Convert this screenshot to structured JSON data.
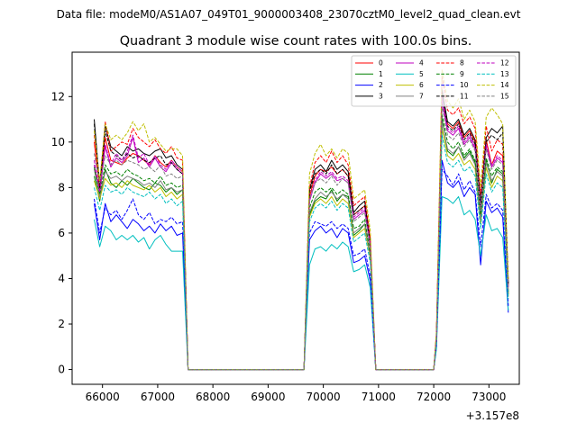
{
  "chart_data": {
    "type": "line",
    "suptitle": "Data file: modeM0/AS1A07_049T01_9000003408_23070cztM0_level2_quad_clean.evt",
    "title": "Quadrant 3 module wise count rates with 100.0s bins.",
    "xlabel": "",
    "ylabel": "",
    "x_offset_label": "+3.157e8",
    "xlim": [
      65450,
      73550
    ],
    "ylim": [
      -0.65,
      13.95
    ],
    "xticks": [
      66000,
      67000,
      68000,
      69000,
      70000,
      71000,
      72000,
      73000
    ],
    "yticks": [
      0,
      2,
      4,
      6,
      8,
      10,
      12
    ],
    "grid": false,
    "legend_position": "top-right",
    "x": [
      65850,
      65950,
      66050,
      66150,
      66250,
      66350,
      66450,
      66550,
      66650,
      66750,
      66850,
      66950,
      67050,
      67150,
      67250,
      67350,
      67450,
      67550,
      67650,
      69550,
      69650,
      69750,
      69850,
      69950,
      70050,
      70150,
      70250,
      70350,
      70450,
      70550,
      70650,
      70750,
      70850,
      70950,
      72000,
      72050,
      72150,
      72250,
      72350,
      72450,
      72550,
      72650,
      72750,
      72850,
      72950,
      73050,
      73150,
      73250,
      73350
    ],
    "series": [
      {
        "name": "0",
        "color": "#ff0000",
        "dash": "solid",
        "values": [
          10.0,
          7.9,
          10.2,
          9.2,
          9.1,
          9.0,
          9.3,
          9.5,
          9.4,
          9.2,
          9.0,
          9.4,
          9.1,
          8.9,
          9.2,
          8.9,
          8.7,
          0,
          0,
          0,
          0,
          7.6,
          8.5,
          8.8,
          8.7,
          8.9,
          8.6,
          8.8,
          8.5,
          6.8,
          7.0,
          7.2,
          5.5,
          0,
          0,
          1.5,
          12.2,
          10.8,
          10.6,
          10.9,
          10.2,
          10.5,
          10.0,
          7.2,
          10.1,
          9.0,
          9.6,
          9.4,
          3.7
        ]
      },
      {
        "name": "1",
        "color": "#008000",
        "dash": "solid",
        "values": [
          8.5,
          7.4,
          8.8,
          8.2,
          8.0,
          8.3,
          8.1,
          8.4,
          8.2,
          8.0,
          7.9,
          8.2,
          8.1,
          7.8,
          8.0,
          7.7,
          7.9,
          0,
          0,
          0,
          0,
          6.8,
          7.4,
          7.6,
          7.5,
          7.9,
          7.4,
          7.7,
          7.6,
          5.9,
          6.1,
          6.4,
          5.0,
          0,
          0,
          1.2,
          11.0,
          9.6,
          9.4,
          9.8,
          9.3,
          9.6,
          9.1,
          6.6,
          9.2,
          8.2,
          8.8,
          8.6,
          3.3
        ]
      },
      {
        "name": "2",
        "color": "#0000ff",
        "dash": "solid",
        "values": [
          7.3,
          5.7,
          7.3,
          6.5,
          6.8,
          6.5,
          6.2,
          6.6,
          6.4,
          6.1,
          6.3,
          6.0,
          6.4,
          6.1,
          6.3,
          5.9,
          6.0,
          0,
          0,
          0,
          0,
          5.7,
          6.1,
          6.3,
          6.0,
          6.2,
          5.8,
          6.2,
          6.0,
          4.7,
          4.8,
          5.0,
          3.9,
          0,
          0,
          1.0,
          9.2,
          8.2,
          8.0,
          8.3,
          7.6,
          8.0,
          7.7,
          4.6,
          7.4,
          6.9,
          7.1,
          6.7,
          2.5
        ]
      },
      {
        "name": "3",
        "color": "#000000",
        "dash": "solid",
        "values": [
          11.0,
          8.1,
          10.7,
          9.8,
          9.6,
          9.4,
          9.8,
          9.6,
          9.7,
          9.5,
          9.4,
          9.6,
          9.7,
          9.3,
          9.4,
          9.0,
          8.8,
          0,
          0,
          0,
          0,
          7.9,
          8.8,
          9.0,
          8.7,
          9.2,
          8.8,
          9.0,
          8.7,
          6.9,
          7.2,
          7.4,
          5.6,
          0,
          0,
          1.5,
          12.3,
          10.9,
          10.7,
          11.0,
          10.3,
          10.6,
          10.1,
          7.3,
          10.2,
          10.6,
          10.4,
          10.7,
          3.8
        ]
      },
      {
        "name": "4",
        "color": "#bf00bf",
        "dash": "solid",
        "values": [
          9.0,
          7.7,
          9.8,
          8.9,
          9.3,
          9.1,
          9.4,
          10.2,
          9.1,
          9.3,
          8.9,
          9.3,
          8.9,
          8.7,
          9.1,
          8.8,
          8.6,
          0,
          0,
          0,
          0,
          7.4,
          8.2,
          8.6,
          8.4,
          8.6,
          8.3,
          8.4,
          8.2,
          6.6,
          6.8,
          7.0,
          5.4,
          0,
          0,
          1.4,
          11.8,
          10.5,
          10.3,
          10.6,
          9.9,
          10.2,
          9.7,
          7.0,
          9.8,
          8.9,
          9.3,
          9.1,
          3.6
        ]
      },
      {
        "name": "5",
        "color": "#00bfbf",
        "dash": "solid",
        "values": [
          6.6,
          5.4,
          6.3,
          6.1,
          5.7,
          5.9,
          5.7,
          5.9,
          5.6,
          5.8,
          5.3,
          5.7,
          5.9,
          5.5,
          5.2,
          5.2,
          5.2,
          0,
          0,
          0,
          0,
          4.6,
          5.3,
          5.4,
          5.2,
          5.5,
          5.3,
          5.6,
          5.4,
          4.3,
          4.4,
          4.6,
          3.6,
          0,
          0,
          0.9,
          7.6,
          7.5,
          7.3,
          7.6,
          6.8,
          7.0,
          6.6,
          5.0,
          6.8,
          6.1,
          6.2,
          5.8,
          2.6
        ]
      },
      {
        "name": "6",
        "color": "#bfbf00",
        "dash": "solid",
        "values": [
          8.3,
          7.5,
          8.4,
          8.1,
          8.2,
          8.0,
          8.3,
          8.1,
          8.0,
          7.9,
          8.1,
          7.8,
          8.0,
          7.6,
          7.8,
          7.5,
          7.7,
          0,
          0,
          0,
          0,
          6.7,
          7.3,
          7.5,
          7.3,
          7.6,
          7.2,
          7.5,
          7.3,
          5.8,
          6.0,
          6.2,
          4.9,
          0,
          0,
          1.2,
          10.6,
          9.4,
          9.2,
          9.5,
          9.0,
          9.2,
          8.8,
          6.4,
          8.9,
          8.0,
          8.5,
          8.3,
          3.2
        ]
      },
      {
        "name": "7",
        "color": "#808080",
        "dash": "solid",
        "values": [
          8.8,
          7.6,
          8.7,
          8.4,
          8.5,
          8.3,
          8.5,
          8.4,
          8.3,
          8.1,
          8.2,
          8.0,
          8.3,
          7.9,
          8.0,
          7.8,
          7.9,
          0,
          0,
          0,
          0,
          6.9,
          7.5,
          7.8,
          7.6,
          7.8,
          7.5,
          7.7,
          7.5,
          6.0,
          6.2,
          6.4,
          5.0,
          0,
          0,
          1.3,
          10.9,
          9.7,
          9.5,
          9.8,
          9.2,
          9.5,
          9.0,
          6.6,
          9.1,
          8.3,
          8.7,
          8.5,
          3.3
        ]
      },
      {
        "name": "8",
        "color": "#ff0000",
        "dash": "dashed",
        "values": [
          10.3,
          8.1,
          10.9,
          9.6,
          9.8,
          10.0,
          9.9,
          10.6,
          10.2,
          10.0,
          9.8,
          10.1,
          9.7,
          9.5,
          9.8,
          9.3,
          9.2,
          0,
          0,
          0,
          0,
          8.0,
          9.1,
          9.4,
          9.1,
          9.6,
          9.1,
          9.4,
          9.0,
          7.2,
          7.4,
          7.6,
          5.8,
          0,
          0,
          1.6,
          12.9,
          11.4,
          11.2,
          11.5,
          10.8,
          11.1,
          10.6,
          7.7,
          10.7,
          9.6,
          10.1,
          9.9,
          3.9
        ]
      },
      {
        "name": "9",
        "color": "#008000",
        "dash": "dashed",
        "values": [
          8.9,
          7.7,
          9.0,
          8.6,
          8.7,
          8.5,
          8.8,
          8.6,
          8.5,
          8.3,
          8.4,
          8.2,
          8.5,
          8.1,
          8.2,
          8.0,
          8.1,
          0,
          0,
          0,
          0,
          7.1,
          7.8,
          8.0,
          7.8,
          8.0,
          7.7,
          7.9,
          7.7,
          6.2,
          6.3,
          6.6,
          5.1,
          0,
          0,
          1.3,
          11.2,
          10.0,
          9.7,
          10.0,
          9.4,
          9.7,
          9.2,
          6.8,
          9.3,
          8.5,
          8.9,
          8.7,
          3.4
        ]
      },
      {
        "name": "10",
        "color": "#0000ff",
        "dash": "dashed",
        "values": [
          7.5,
          6.0,
          7.1,
          6.8,
          7.0,
          6.6,
          7.0,
          7.5,
          6.8,
          6.6,
          6.9,
          6.4,
          6.6,
          6.5,
          6.7,
          6.4,
          6.5,
          0,
          0,
          0,
          0,
          6.0,
          6.5,
          6.4,
          6.3,
          6.5,
          6.2,
          6.4,
          6.2,
          5.0,
          5.1,
          5.3,
          4.1,
          0,
          0,
          1.1,
          8.8,
          8.5,
          8.1,
          8.6,
          7.9,
          8.3,
          7.8,
          5.4,
          7.7,
          7.1,
          7.3,
          7.0,
          2.8
        ]
      },
      {
        "name": "11",
        "color": "#000000",
        "dash": "dashed",
        "values": [
          10.8,
          8.0,
          10.5,
          9.6,
          9.4,
          9.2,
          9.5,
          9.3,
          9.4,
          9.2,
          9.1,
          9.3,
          9.4,
          9.0,
          9.1,
          8.8,
          8.6,
          0,
          0,
          0,
          0,
          7.8,
          8.6,
          8.8,
          8.6,
          9.0,
          8.6,
          8.8,
          8.5,
          6.8,
          7.0,
          7.2,
          5.5,
          0,
          0,
          1.5,
          12.1,
          10.7,
          10.5,
          10.8,
          10.1,
          10.4,
          9.9,
          7.1,
          10.0,
          10.3,
          10.1,
          10.4,
          3.7
        ]
      },
      {
        "name": "12",
        "color": "#bf00bf",
        "dash": "dashed",
        "values": [
          9.2,
          7.8,
          9.9,
          9.0,
          9.5,
          9.2,
          9.6,
          10.3,
          9.3,
          9.5,
          9.0,
          9.4,
          9.0,
          8.8,
          9.2,
          8.9,
          8.7,
          0,
          0,
          0,
          0,
          7.5,
          8.3,
          8.7,
          8.5,
          8.7,
          8.4,
          8.5,
          8.3,
          6.7,
          6.9,
          7.1,
          5.5,
          0,
          0,
          1.4,
          12.0,
          10.6,
          10.4,
          10.7,
          10.0,
          10.3,
          9.8,
          7.1,
          9.9,
          9.0,
          9.4,
          9.2,
          3.6
        ]
      },
      {
        "name": "13",
        "color": "#00bfbf",
        "dash": "dashed",
        "values": [
          8.0,
          7.0,
          8.1,
          7.8,
          7.9,
          7.7,
          8.0,
          7.8,
          7.7,
          7.6,
          7.8,
          7.5,
          7.7,
          7.3,
          7.5,
          7.2,
          7.4,
          0,
          0,
          0,
          0,
          6.5,
          7.1,
          7.3,
          7.1,
          7.4,
          7.0,
          7.3,
          7.1,
          5.6,
          5.8,
          6.0,
          4.7,
          0,
          0,
          1.1,
          10.3,
          9.1,
          8.9,
          9.2,
          8.7,
          8.9,
          8.5,
          6.2,
          8.6,
          7.8,
          8.2,
          8.0,
          3.1
        ]
      },
      {
        "name": "14",
        "color": "#bfbf00",
        "dash": "dashed",
        "values": [
          10.5,
          8.3,
          10.8,
          10.1,
          10.3,
          10.1,
          10.4,
          10.9,
          10.5,
          10.8,
          10.0,
          10.2,
          9.9,
          9.6,
          9.7,
          9.7,
          9.4,
          0,
          0,
          0,
          0,
          8.6,
          9.5,
          9.9,
          9.4,
          9.7,
          9.3,
          9.7,
          9.5,
          7.5,
          7.7,
          7.9,
          6.1,
          0,
          0,
          1.7,
          13.2,
          11.8,
          11.5,
          11.9,
          11.0,
          11.4,
          10.9,
          8.0,
          11.1,
          11.5,
          11.2,
          10.8,
          4.0
        ]
      },
      {
        "name": "15",
        "color": "#808080",
        "dash": "dashed",
        "values": [
          9.5,
          8.2,
          9.4,
          9.0,
          9.2,
          9.0,
          9.2,
          9.1,
          9.0,
          8.8,
          8.9,
          8.7,
          9.0,
          8.5,
          8.6,
          8.4,
          8.5,
          0,
          0,
          0,
          0,
          7.5,
          8.2,
          8.4,
          8.2,
          8.5,
          8.1,
          8.4,
          8.2,
          6.5,
          6.7,
          6.9,
          5.3,
          0,
          0,
          1.4,
          11.6,
          10.3,
          10.1,
          10.4,
          9.8,
          10.1,
          9.6,
          7.0,
          9.7,
          8.8,
          9.2,
          9.0,
          3.5
        ]
      }
    ]
  }
}
